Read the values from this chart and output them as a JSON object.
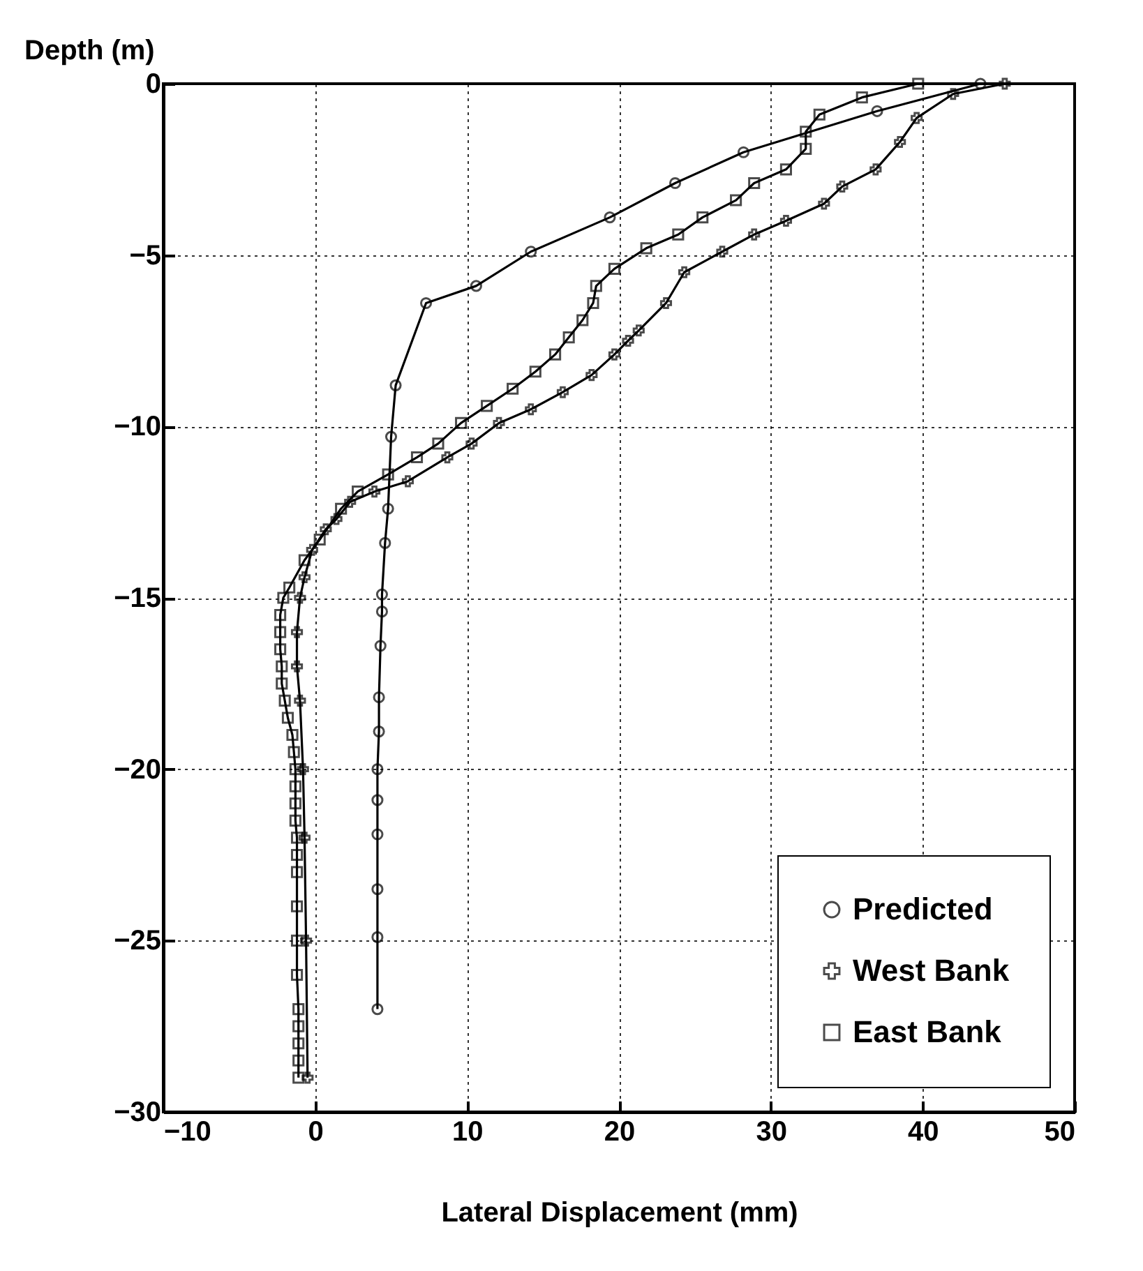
{
  "chart_data": {
    "type": "line",
    "xlabel": "Lateral Displacement (mm)",
    "ylabel": "Depth (m)",
    "xlim": [
      -10,
      50
    ],
    "xticks": [
      -10,
      0,
      10,
      20,
      30,
      40,
      50
    ],
    "ylim": [
      -30,
      0
    ],
    "yticks": [
      -30,
      -25,
      -20,
      -15,
      -10,
      -5,
      0
    ],
    "grid": true,
    "legend": "bottom right",
    "series": [
      {
        "name": "Predicted",
        "color": "#000000",
        "marker": "circle",
        "x": [
          43.8,
          37,
          28.2,
          23.7,
          19.4,
          14.2,
          10.6,
          7.3,
          5.3,
          5.0,
          4.8,
          4.6,
          4.4,
          4.4,
          4.3,
          4.2,
          4.2,
          4.1,
          4.1,
          4.1,
          4.1,
          4.1,
          4.1
        ],
        "values": [
          0,
          -0.8,
          -2.0,
          -2.9,
          -3.9,
          -4.9,
          -5.9,
          -6.4,
          -8.8,
          -10.3,
          -12.4,
          -13.4,
          -14.9,
          -15.4,
          -16.4,
          -17.9,
          -18.9,
          -20.0,
          -20.9,
          -21.9,
          -23.5,
          -24.9,
          -27.0
        ]
      },
      {
        "name": "West Bank",
        "color": "#000000",
        "marker": "cross",
        "x": [
          45.4,
          42,
          39.6,
          38.5,
          36.9,
          34.7,
          33.5,
          31,
          28.9,
          26.8,
          24.3,
          23.1,
          21.3,
          20.6,
          19.7,
          18.2,
          16.3,
          14.2,
          12.1,
          10.3,
          8.7,
          6.1,
          3.9,
          2.3,
          1.4,
          0.7,
          -0.2,
          -0.7,
          -1.0,
          -1.2,
          -1.2,
          -1.0,
          -0.8,
          -0.7,
          -0.6,
          -0.5
        ],
        "values": [
          0,
          -0.3,
          -1.0,
          -1.7,
          -2.5,
          -3.0,
          -3.5,
          -4.0,
          -4.4,
          -4.9,
          -5.5,
          -6.4,
          -7.2,
          -7.5,
          -7.9,
          -8.5,
          -9.0,
          -9.5,
          -9.9,
          -10.5,
          -10.9,
          -11.6,
          -11.9,
          -12.2,
          -12.7,
          -13.0,
          -13.6,
          -14.4,
          -15.0,
          -16.0,
          -17.0,
          -18.0,
          -20.0,
          -22.0,
          -25.0,
          -29.0
        ]
      },
      {
        "name": "East Bank",
        "color": "#000000",
        "marker": "square",
        "x": [
          39.7,
          36,
          33.2,
          32.3,
          32.3,
          31,
          28.9,
          27.7,
          25.5,
          23.9,
          21.8,
          19.7,
          18.5,
          18.3,
          17.6,
          16.7,
          15.8,
          14.5,
          13,
          11.3,
          9.6,
          8.1,
          6.7,
          4.8,
          2.8,
          1.7,
          0.3,
          -0.7,
          -1.7,
          -2.1,
          -2.3,
          -2.3,
          -2.3,
          -2.2,
          -2.2,
          -2.0,
          -1.8,
          -1.5,
          -1.4,
          -1.3,
          -1.3,
          -1.3,
          -1.3,
          -1.2,
          -1.2,
          -1.2,
          -1.2,
          -1.2,
          -1.2,
          -1.1,
          -1.1,
          -1.1,
          -1.1,
          -1.1
        ],
        "values": [
          0,
          -0.4,
          -0.9,
          -1.4,
          -1.9,
          -2.5,
          -2.9,
          -3.4,
          -3.9,
          -4.4,
          -4.8,
          -5.4,
          -5.9,
          -6.4,
          -6.9,
          -7.4,
          -7.9,
          -8.4,
          -8.9,
          -9.4,
          -9.9,
          -10.5,
          -10.9,
          -11.4,
          -11.9,
          -12.4,
          -13.3,
          -13.9,
          -14.7,
          -15.0,
          -15.5,
          -16.0,
          -16.5,
          -17.0,
          -17.5,
          -18.0,
          -18.5,
          -19.0,
          -19.5,
          -20.0,
          -20.5,
          -21.0,
          -21.5,
          -22.0,
          -22.5,
          -23.0,
          -24.0,
          -25.0,
          -26.0,
          -27.0,
          -27.5,
          -28.0,
          -28.5,
          -29.0
        ]
      }
    ]
  }
}
